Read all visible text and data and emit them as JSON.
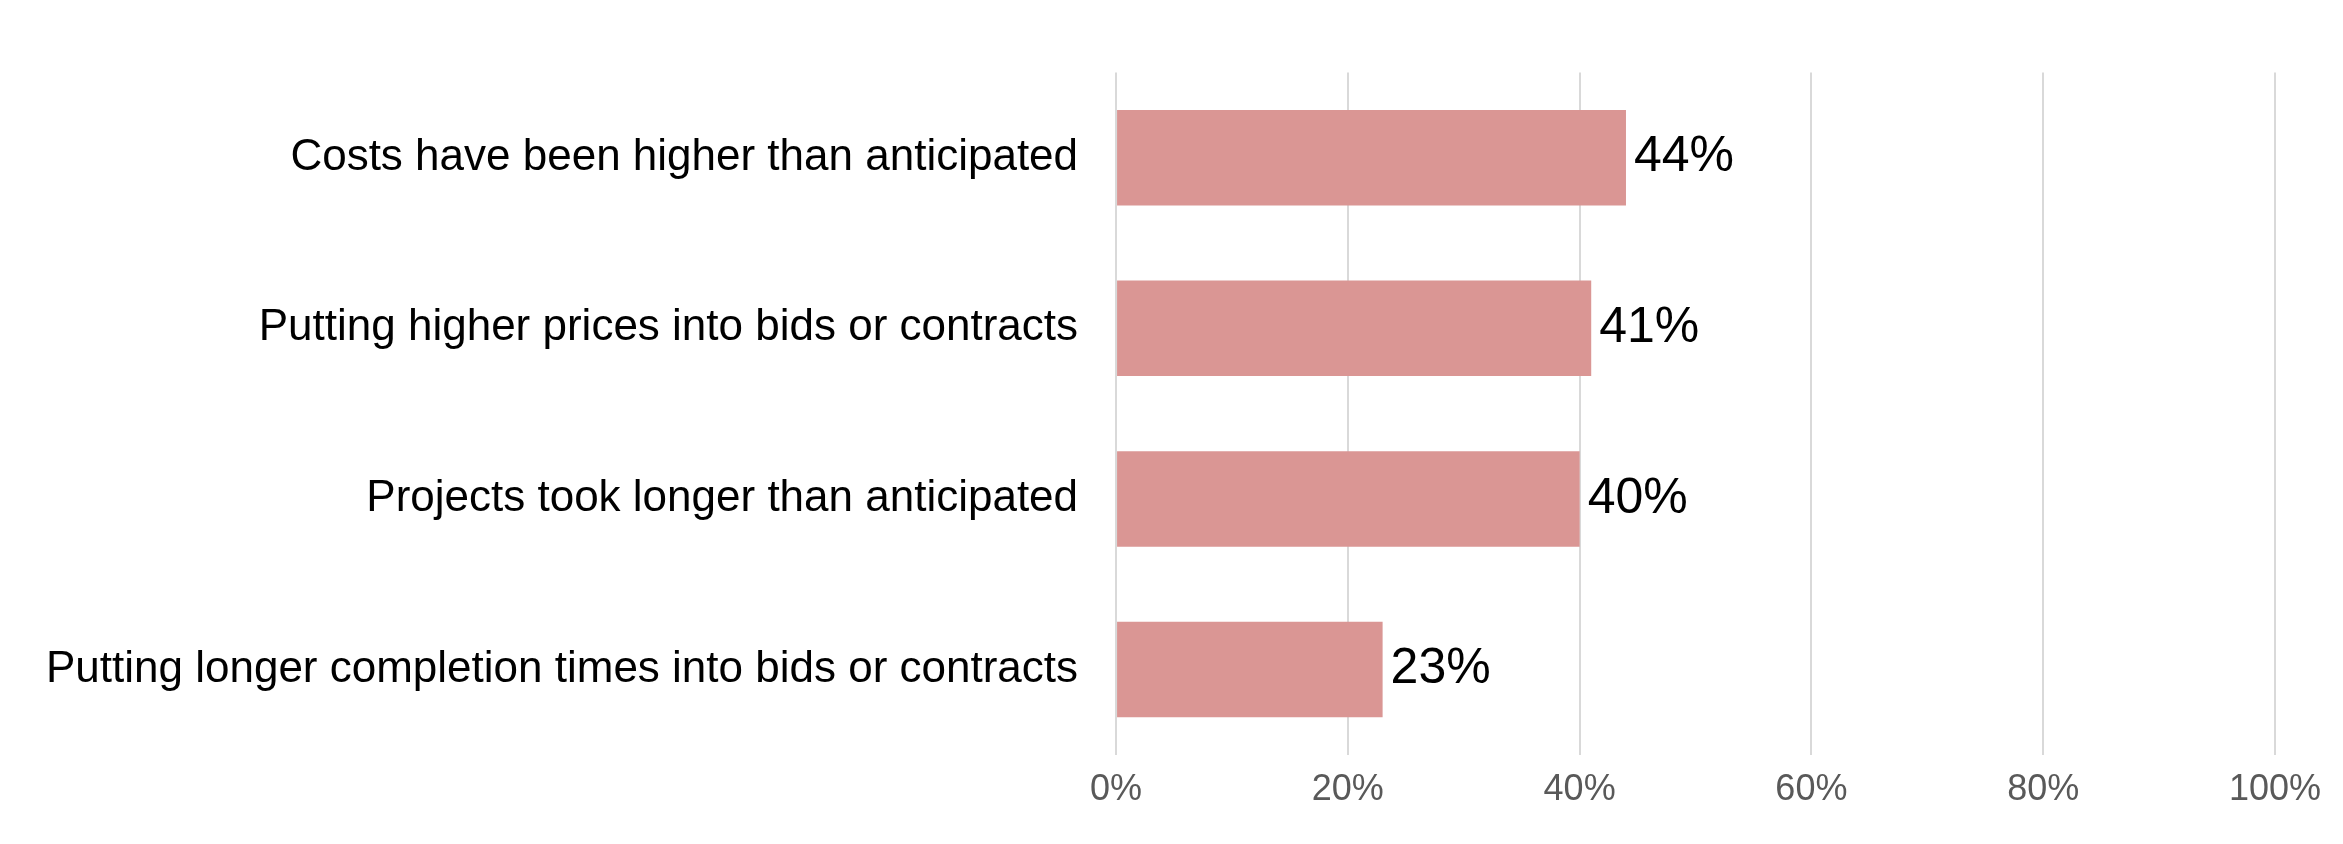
{
  "chart_data": {
    "type": "bar",
    "orientation": "horizontal",
    "categories": [
      "Costs have been higher than anticipated",
      "Putting higher prices into bids or contracts",
      "Projects took longer than anticipated",
      "Putting longer completion times into bids or contracts"
    ],
    "values": [
      44,
      41,
      40,
      23
    ],
    "value_labels": [
      "44%",
      "41%",
      "40%",
      "23%"
    ],
    "color": "#da9694",
    "xlim": [
      0,
      100
    ],
    "xticks": [
      {
        "value": 0,
        "label": "0%"
      },
      {
        "value": 20,
        "label": "20%"
      },
      {
        "value": 40,
        "label": "40%"
      },
      {
        "value": 60,
        "label": "60%"
      },
      {
        "value": 80,
        "label": "80%"
      },
      {
        "value": 100,
        "label": "100%"
      }
    ],
    "grid": "x",
    "legend": false
  }
}
